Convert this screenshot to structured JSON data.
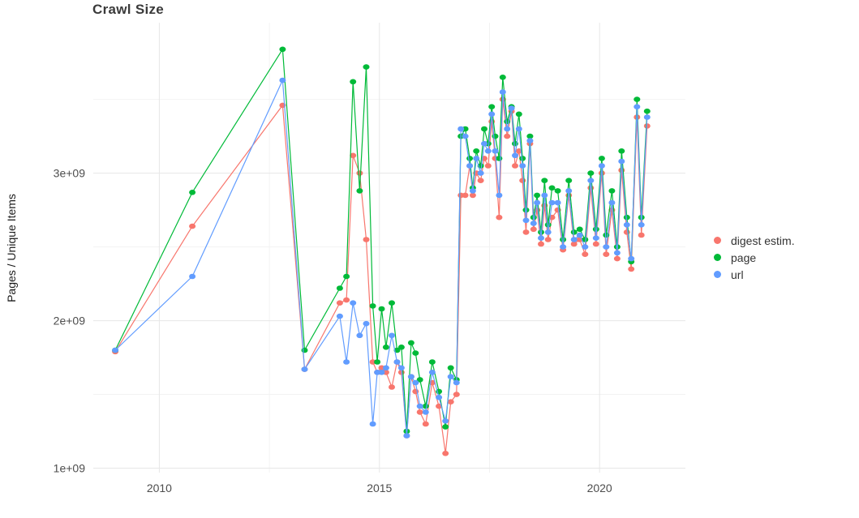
{
  "chart_data": {
    "type": "line",
    "title": "Crawl Size",
    "xlabel": "",
    "ylabel": "Pages / Unique Items",
    "values_unit": "billions (1e9)",
    "xlim": [
      2008.5,
      2021.95
    ],
    "ylim": [
      0.97,
      4.02
    ],
    "grid": true,
    "legend_position": "right",
    "x_ticks": [
      2010,
      2015,
      2020
    ],
    "x_tick_labels": [
      "2010",
      "2015",
      "2020"
    ],
    "y_ticks": [
      1,
      2,
      3
    ],
    "y_tick_labels": [
      "1e+09",
      "2e+09",
      "3e+09"
    ],
    "x_minor_ticks": [
      2012.5,
      2017.5
    ],
    "y_minor_ticks": [
      1.5,
      2.5,
      3.5
    ],
    "x": [
      2009.0,
      2010.75,
      2012.8,
      2013.3,
      2014.1,
      2014.25,
      2014.4,
      2014.55,
      2014.7,
      2014.85,
      2014.95,
      2015.05,
      2015.15,
      2015.28,
      2015.4,
      2015.5,
      2015.62,
      2015.72,
      2015.82,
      2015.92,
      2016.05,
      2016.2,
      2016.35,
      2016.5,
      2016.62,
      2016.75,
      2016.85,
      2016.95,
      2017.05,
      2017.12,
      2017.2,
      2017.3,
      2017.38,
      2017.47,
      2017.55,
      2017.63,
      2017.72,
      2017.8,
      2017.9,
      2018.0,
      2018.08,
      2018.17,
      2018.25,
      2018.33,
      2018.42,
      2018.5,
      2018.58,
      2018.67,
      2018.75,
      2018.83,
      2018.92,
      2019.05,
      2019.17,
      2019.3,
      2019.42,
      2019.55,
      2019.67,
      2019.8,
      2019.92,
      2020.05,
      2020.15,
      2020.28,
      2020.4,
      2020.5,
      2020.62,
      2020.72,
      2020.85,
      2020.95,
      2021.08
    ],
    "series": [
      {
        "name": "digest estim.",
        "color": "#F8766D",
        "values": [
          1.79,
          2.64,
          3.46,
          1.67,
          2.12,
          2.14,
          3.12,
          3.0,
          2.55,
          1.72,
          1.65,
          1.68,
          1.65,
          1.55,
          1.72,
          1.65,
          1.22,
          1.62,
          1.52,
          1.38,
          1.3,
          1.58,
          1.42,
          1.1,
          1.45,
          1.5,
          2.85,
          2.85,
          3.05,
          2.85,
          3.0,
          2.95,
          3.1,
          3.05,
          3.35,
          3.1,
          2.7,
          3.5,
          3.25,
          3.42,
          3.05,
          3.15,
          2.95,
          2.6,
          3.2,
          2.62,
          2.75,
          2.52,
          2.78,
          2.55,
          2.7,
          2.75,
          2.48,
          2.85,
          2.52,
          2.55,
          2.45,
          2.9,
          2.52,
          3.0,
          2.45,
          2.75,
          2.42,
          3.02,
          2.6,
          2.35,
          3.38,
          2.58,
          3.32
        ]
      },
      {
        "name": "page",
        "color": "#00BA38",
        "values": [
          1.8,
          2.87,
          3.84,
          1.8,
          2.22,
          2.3,
          3.62,
          2.88,
          3.72,
          2.1,
          1.72,
          2.08,
          1.82,
          2.12,
          1.8,
          1.82,
          1.25,
          1.85,
          1.78,
          1.6,
          1.42,
          1.72,
          1.52,
          1.28,
          1.68,
          1.6,
          3.25,
          3.3,
          3.1,
          2.9,
          3.15,
          3.05,
          3.3,
          3.2,
          3.45,
          3.25,
          3.1,
          3.65,
          3.35,
          3.45,
          3.2,
          3.4,
          3.1,
          2.75,
          3.25,
          2.7,
          2.85,
          2.6,
          2.95,
          2.65,
          2.9,
          2.88,
          2.55,
          2.95,
          2.6,
          2.62,
          2.55,
          3.0,
          2.62,
          3.1,
          2.58,
          2.88,
          2.5,
          3.15,
          2.7,
          2.4,
          3.5,
          2.7,
          3.42
        ]
      },
      {
        "name": "url",
        "color": "#619CFF",
        "values": [
          1.8,
          2.3,
          3.63,
          1.67,
          2.03,
          1.72,
          2.12,
          1.9,
          1.98,
          1.3,
          1.65,
          1.65,
          1.68,
          1.9,
          1.72,
          1.68,
          1.22,
          1.62,
          1.58,
          1.42,
          1.38,
          1.65,
          1.48,
          1.32,
          1.62,
          1.58,
          3.3,
          3.25,
          3.05,
          2.88,
          3.1,
          3.0,
          3.2,
          3.15,
          3.4,
          3.15,
          2.85,
          3.55,
          3.3,
          3.44,
          3.12,
          3.3,
          3.05,
          2.68,
          3.22,
          2.66,
          2.8,
          2.56,
          2.85,
          2.6,
          2.8,
          2.8,
          2.5,
          2.88,
          2.55,
          2.58,
          2.5,
          2.95,
          2.56,
          3.05,
          2.5,
          2.8,
          2.46,
          3.08,
          2.65,
          2.42,
          3.45,
          2.65,
          3.38
        ]
      }
    ],
    "colors": {
      "digest_estim": "#F8766D",
      "page": "#00BA38",
      "url": "#619CFF",
      "grid_major": "#e7e7e7",
      "grid_minor": "#f2f2f2",
      "tick_label": "#4d4d4d"
    }
  }
}
